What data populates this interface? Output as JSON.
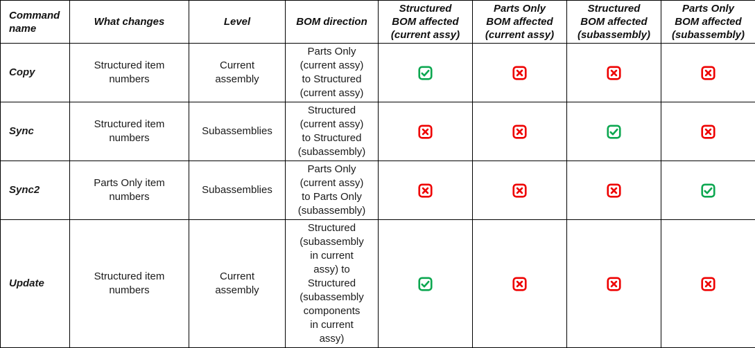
{
  "header": {
    "command_name": "Command\nname",
    "what_changes": "What changes",
    "level": "Level",
    "bom_direction": "BOM direction",
    "affected": [
      "Structured\nBOM affected\n(current assy)",
      "Parts Only\nBOM affected\n(current assy)",
      "Structured\nBOM affected\n(subassembly)",
      "Parts Only\nBOM affected\n(subassembly)"
    ]
  },
  "rows": [
    {
      "command": "Copy",
      "what_changes": "Structured item\nnumbers",
      "level": "Current\nassembly",
      "bom_direction": "Parts Only\n(current assy)\nto Structured\n(current assy)",
      "affected": [
        true,
        false,
        false,
        false
      ]
    },
    {
      "command": "Sync",
      "what_changes": "Structured item\nnumbers",
      "level": "Subassemblies",
      "bom_direction": "Structured\n(current assy)\nto Structured\n(subassembly)",
      "affected": [
        false,
        false,
        true,
        false
      ]
    },
    {
      "command": "Sync2",
      "what_changes": "Parts Only item\nnumbers",
      "level": "Subassemblies",
      "bom_direction": "Parts Only\n(current assy)\nto Parts Only\n(subassembly)",
      "affected": [
        false,
        false,
        false,
        true
      ]
    },
    {
      "command": "Update",
      "what_changes": "Structured item\nnumbers",
      "level": "Current\nassembly",
      "bom_direction": "Structured\n(subassembly\nin current\nassy) to\nStructured\n(subassembly\ncomponents\nin current\nassy)",
      "affected": [
        true,
        false,
        false,
        false
      ]
    }
  ],
  "icons": {
    "checked": {
      "name": "checked-checkbox-icon",
      "color": "#0CA750"
    },
    "unchecked": {
      "name": "crossed-checkbox-icon",
      "color": "#EE0000"
    }
  }
}
